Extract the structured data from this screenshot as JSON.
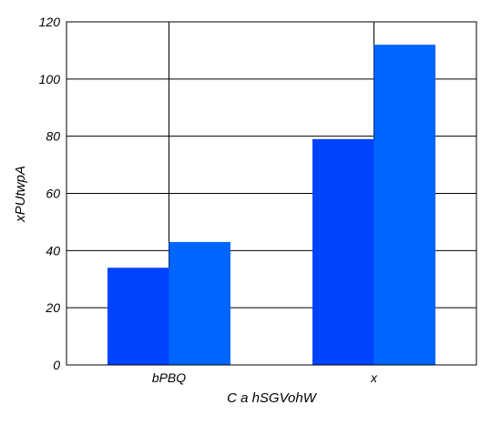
{
  "chart_data": {
    "type": "bar",
    "categories": [
      "bPBQ",
      "x"
    ],
    "series": [
      {
        "values": [
          34,
          79
        ],
        "color": "#0044ff"
      },
      {
        "values": [
          43,
          112
        ],
        "color": "#0066ff"
      }
    ],
    "title": "",
    "xlabel": "C a hSGVohW",
    "ylabel": "xPUtwpA",
    "ylim": [
      0,
      120
    ],
    "yticks": [
      0,
      20,
      40,
      60,
      80,
      100,
      120
    ],
    "grid": true,
    "legend": "none"
  }
}
